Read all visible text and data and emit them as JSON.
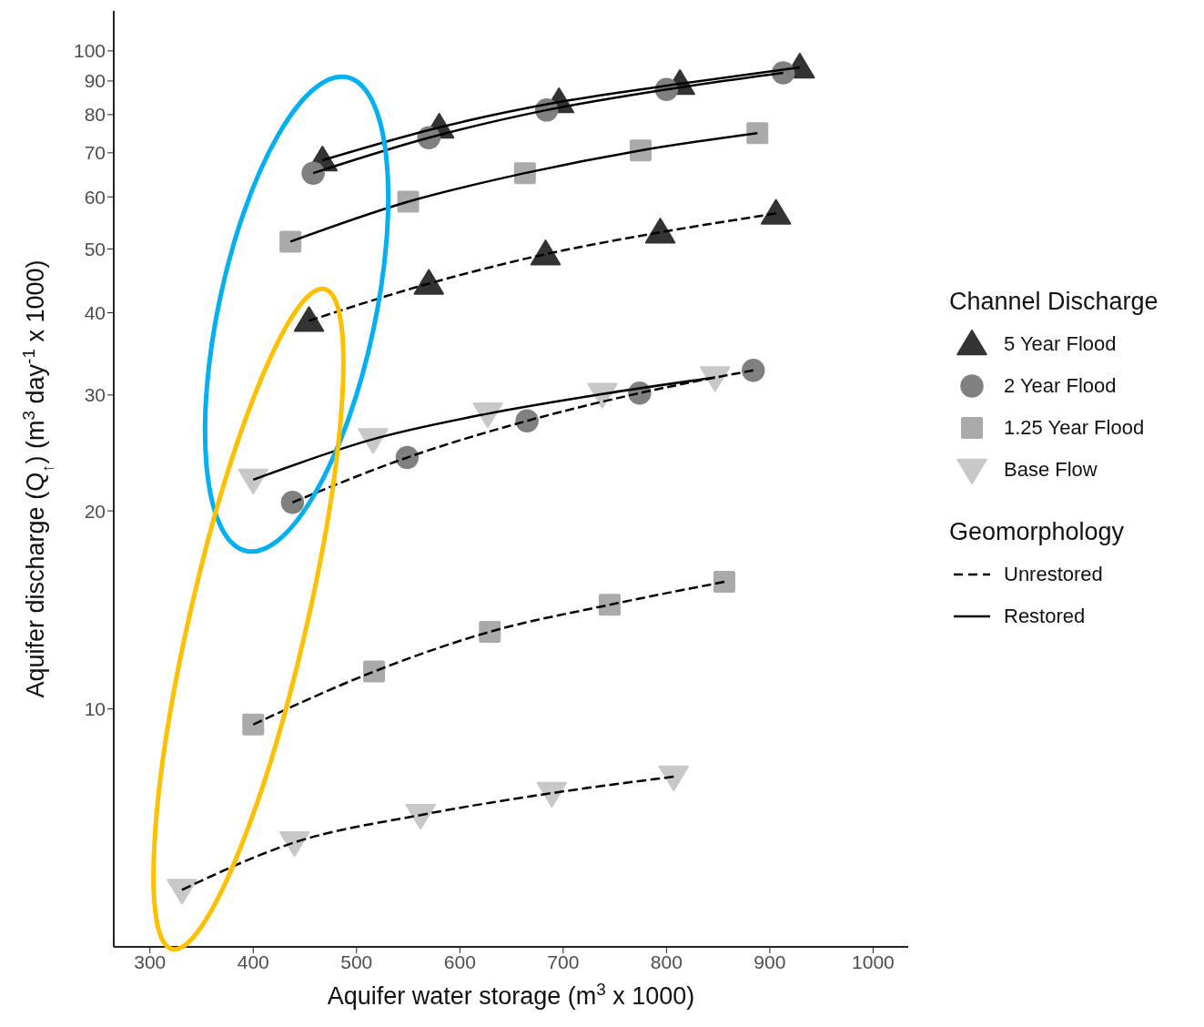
{
  "chart_data": {
    "type": "scatter",
    "xlabel": "Aquifer water storage (m$^{3}$ x 1000)",
    "ylabel": "Aquifer discharge (Q$_{↑}$) (m$^{3}$ day$^{-1}$ x 1000)",
    "legend_title": [
      "Channel Discharge",
      "Geomorphology"
    ],
    "legend": "right",
    "log": "y",
    "grid": false,
    "xlim": [
      265,
      1034
    ],
    "xticks": [
      300,
      400,
      500,
      600,
      700,
      800,
      900,
      1000
    ],
    "ylim": [
      4.35,
      115
    ],
    "yticks": [
      10,
      20,
      30,
      40,
      50,
      60,
      70,
      80,
      90,
      100
    ],
    "series": [
      {
        "name": "5 Year Flood",
        "marker": "triangle",
        "color": "#333333",
        "x": [
          467,
          580,
          696,
          813,
          929
        ],
        "values": [
          68.2,
          76.5,
          83.6,
          89.1,
          94.4
        ]
      },
      {
        "name": "2 Year Flood",
        "marker": "circle",
        "color": "#808080",
        "x": [
          458,
          570,
          684,
          800,
          913
        ],
        "values": [
          65.2,
          73.8,
          81.3,
          87.4,
          92.6
        ]
      },
      {
        "name": "1.25 Year Flood",
        "marker": "square",
        "color": "#aaaaaa",
        "x": [
          436,
          550,
          663,
          775,
          888
        ],
        "values": [
          51.3,
          59.0,
          65.2,
          70.6,
          75.0
        ]
      },
      {
        "name": "Base Flow",
        "marker": "triangle-down",
        "color": "#c8c8c8",
        "x": [
          400,
          516,
          627,
          738,
          847
        ],
        "values": [
          22.3,
          25.7,
          28.1,
          30.1,
          31.9
        ]
      },
      {
        "marker": "triangle",
        "color": "#333333",
        "x": [
          454,
          570,
          683,
          794,
          906
        ],
        "values": [
          38.9,
          44.3,
          49.1,
          53.0,
          56.6
        ]
      },
      {
        "marker": "circle",
        "color": "#808080",
        "x": [
          438,
          549,
          665,
          774,
          884
        ],
        "values": [
          20.6,
          24.1,
          27.4,
          30.2,
          32.7
        ]
      },
      {
        "marker": "square",
        "color": "#aaaaaa",
        "x": [
          400,
          517,
          629,
          745,
          856
        ],
        "values": [
          9.47,
          11.4,
          13.1,
          14.4,
          15.6
        ]
      },
      {
        "marker": "triangle-down",
        "color": "#c8c8c8",
        "x": [
          331,
          440,
          562,
          689,
          807
        ],
        "values": [
          5.31,
          6.27,
          6.9,
          7.45,
          7.89
        ]
      },
      {
        "name": "Unrestored",
        "type": "line",
        "marker": "none",
        "color": "#000000",
        "line_style": "dashed",
        "x": [
          454,
          570,
          683,
          794,
          906
        ],
        "values": [
          38.9,
          44.3,
          49.1,
          53.0,
          56.6
        ]
      },
      {
        "type": "line",
        "marker": "none",
        "color": "#000000",
        "line_style": "dashed",
        "x": [
          438,
          549,
          665,
          774,
          884
        ],
        "values": [
          20.6,
          24.1,
          27.4,
          30.2,
          32.7
        ]
      },
      {
        "type": "line",
        "marker": "none",
        "color": "#000000",
        "line_style": "dashed",
        "x": [
          400,
          517,
          629,
          745,
          856
        ],
        "values": [
          9.47,
          11.4,
          13.1,
          14.4,
          15.6
        ]
      },
      {
        "type": "line",
        "marker": "none",
        "color": "#000000",
        "line_style": "dashed",
        "x": [
          331,
          440,
          562,
          689,
          807
        ],
        "values": [
          5.31,
          6.27,
          6.9,
          7.45,
          7.89
        ]
      },
      {
        "name": "Restored",
        "type": "line",
        "marker": "none",
        "color": "#000000",
        "line_style": "solid",
        "x": [
          467,
          580,
          696,
          813,
          929
        ],
        "values": [
          68.2,
          76.5,
          83.6,
          89.1,
          94.4
        ]
      },
      {
        "type": "line",
        "marker": "none",
        "color": "#000000",
        "line_style": "solid",
        "x": [
          458,
          570,
          684,
          800,
          913
        ],
        "values": [
          65.2,
          73.8,
          81.3,
          87.4,
          92.6
        ]
      },
      {
        "type": "line",
        "marker": "none",
        "color": "#000000",
        "line_style": "solid",
        "x": [
          436,
          550,
          663,
          775,
          888
        ],
        "values": [
          51.3,
          59.0,
          65.2,
          70.6,
          75.0
        ]
      },
      {
        "type": "line",
        "marker": "none",
        "color": "#000000",
        "line_style": "solid",
        "x": [
          400,
          516,
          627,
          738,
          847
        ],
        "values": [
          22.3,
          25.7,
          28.1,
          30.1,
          31.9
        ]
      }
    ]
  }
}
